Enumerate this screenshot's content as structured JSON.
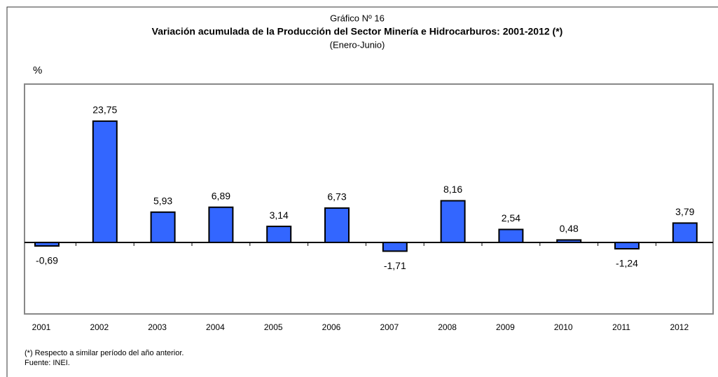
{
  "chart_data": {
    "type": "bar",
    "supertitle": "Gráfico Nº 16",
    "title": "Variación acumulada de la Producción del Sector Minería e Hidrocarburos: 2001-2012 (*)",
    "subtitle": "(Enero-Junio)",
    "ylabel": "%",
    "categories": [
      "2001",
      "2002",
      "2003",
      "2004",
      "2005",
      "2006",
      "2007",
      "2008",
      "2009",
      "2010",
      "2011",
      "2012"
    ],
    "values": [
      -0.69,
      23.75,
      5.93,
      6.89,
      3.14,
      6.73,
      -1.71,
      8.16,
      2.54,
      0.48,
      -1.24,
      3.79
    ],
    "value_labels": [
      "-0,69",
      "23,75",
      "5,93",
      "6,89",
      "3,14",
      "6,73",
      "-1,71",
      "8,16",
      "2,54",
      "0,48",
      "-1,24",
      "3,79"
    ],
    "color": "#3366ff",
    "ylim": [
      -14,
      31
    ],
    "notes": [
      "(*) Respecto a similar período del año anterior.",
      "Fuente: INEI."
    ]
  }
}
